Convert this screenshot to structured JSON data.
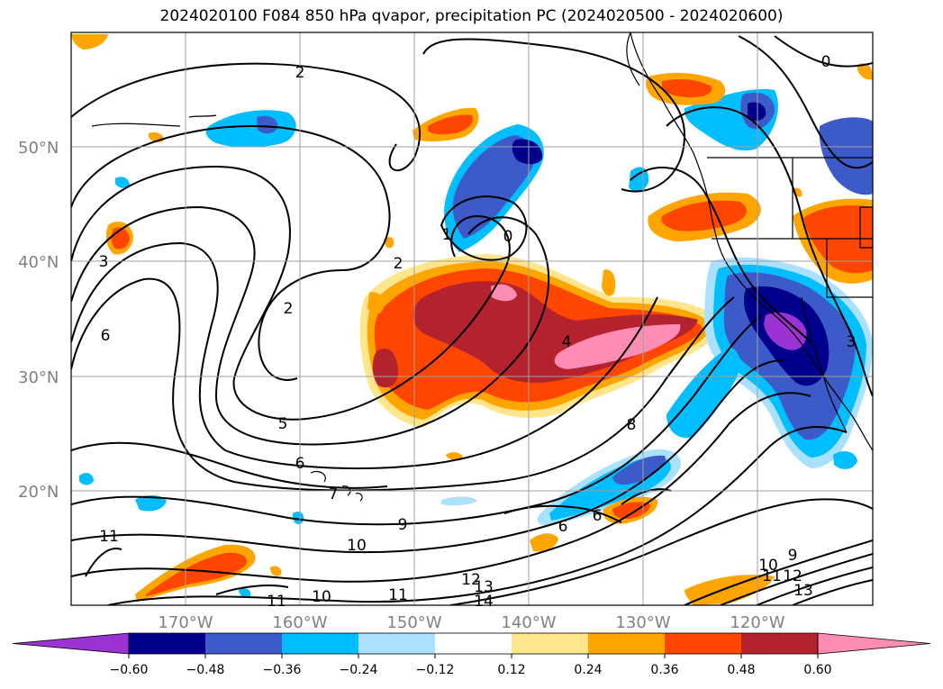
{
  "title": "2024020100 F084 850 hPa qvapor, precipitation PC (2024020500 - 2024020600)",
  "map": {
    "lat_labels": [
      "50°N",
      "40°N",
      "30°N",
      "20°N"
    ],
    "lon_labels": [
      "170°W",
      "160°W",
      "150°W",
      "140°W",
      "130°W",
      "120°W"
    ],
    "contour_labels": [
      "2",
      "3",
      "6",
      "2",
      "5",
      "6",
      "7",
      "2",
      "0",
      "1",
      "0",
      "4",
      "8",
      "6",
      "6",
      "11",
      "9",
      "10",
      "10",
      "11",
      "12",
      "13",
      "14",
      "9",
      "10",
      "11",
      "12",
      "13",
      "3",
      "11"
    ],
    "gridline_color": "#a0a0a0"
  },
  "colorbar": {
    "colors": [
      "#9b32d2",
      "#00008c",
      "#3c5ac8",
      "#00beff",
      "#aae1ff",
      "#ffffff",
      "#ffe68c",
      "#ffa500",
      "#ff4600",
      "#b4232d",
      "#ff8cb4"
    ],
    "tick_labels": [
      "−0.60",
      "−0.48",
      "−0.36",
      "−0.24",
      "−0.12",
      "0.12",
      "0.24",
      "0.36",
      "0.48",
      "0.60"
    ]
  }
}
